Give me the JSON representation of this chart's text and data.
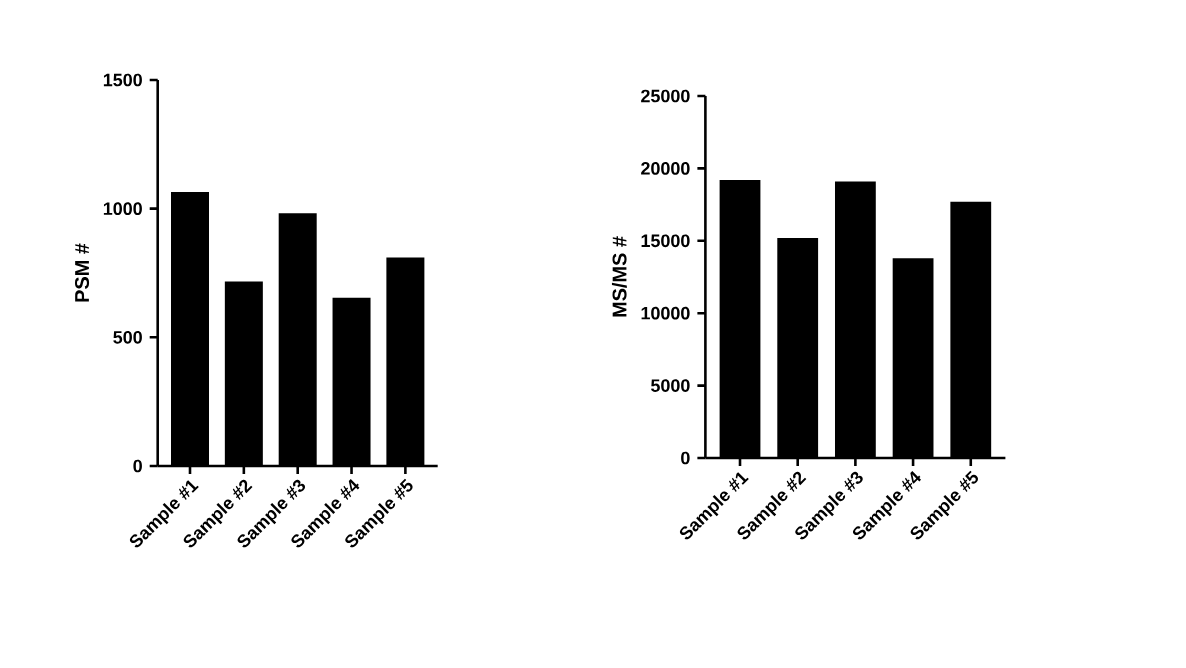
{
  "chart_data": [
    {
      "type": "bar",
      "ylabel": "PSM #",
      "categories": [
        "Sample #1",
        "Sample #2",
        "Sample #3",
        "Sample #4",
        "Sample #5"
      ],
      "values": [
        1065,
        717,
        982,
        654,
        810
      ],
      "color": "#000000",
      "ylim": [
        0,
        1500
      ],
      "yticks": [
        0,
        500,
        1000,
        1500
      ]
    },
    {
      "type": "bar",
      "ylabel": "MS/MS #",
      "categories": [
        "Sample #1",
        "Sample #2",
        "Sample #3",
        "Sample #4",
        "Sample #5"
      ],
      "values": [
        19200,
        15200,
        19100,
        13800,
        17700
      ],
      "color": "#000000",
      "ylim": [
        0,
        25000
      ],
      "yticks": [
        0,
        5000,
        10000,
        15000,
        20000,
        25000
      ]
    }
  ]
}
